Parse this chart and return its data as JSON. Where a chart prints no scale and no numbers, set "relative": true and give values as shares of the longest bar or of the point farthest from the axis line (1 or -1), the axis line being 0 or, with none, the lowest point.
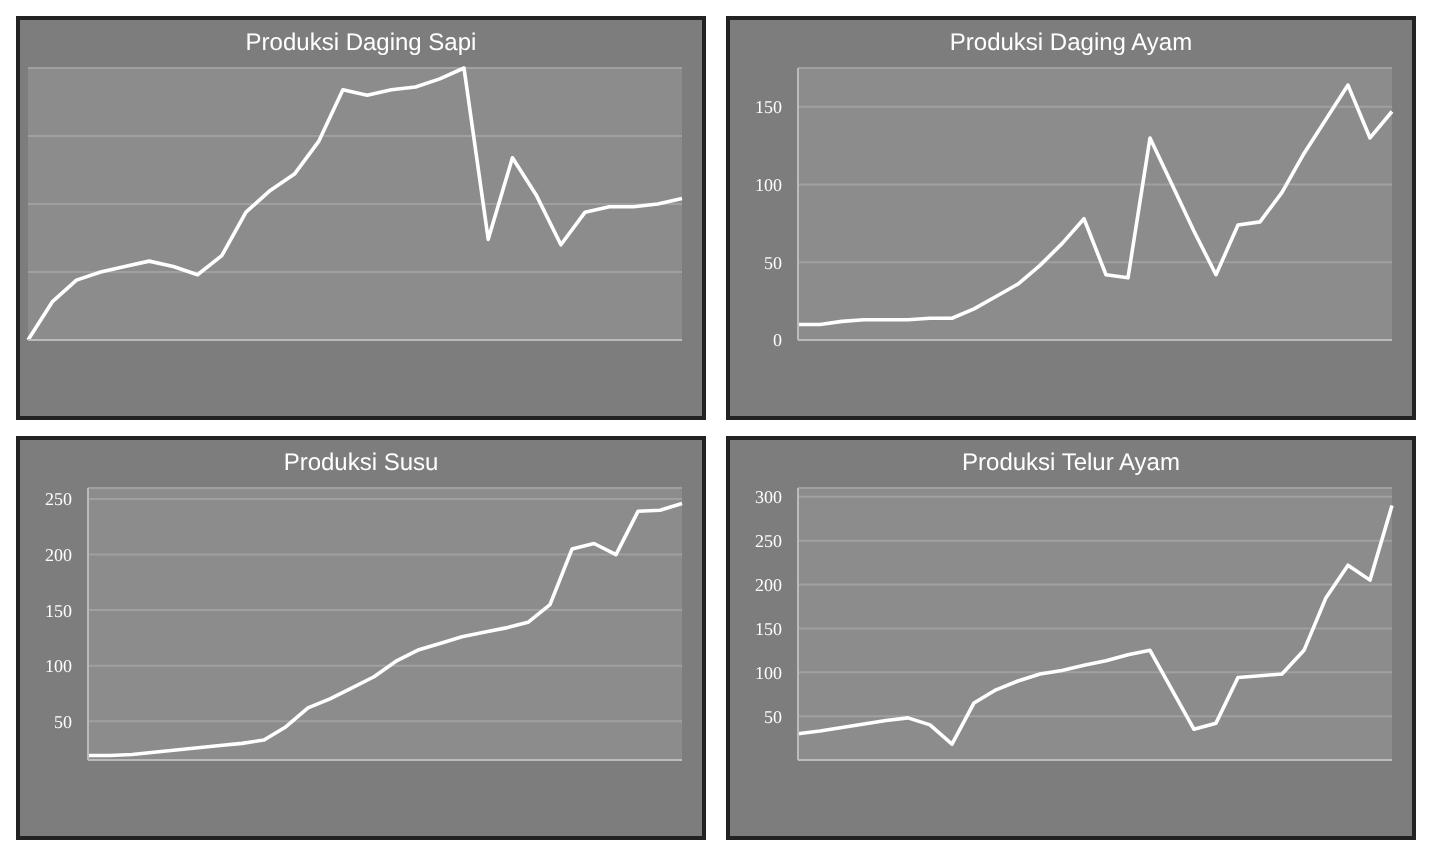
{
  "chart_data": [
    {
      "type": "line",
      "title": "Produksi Daging Sapi",
      "relative": true,
      "grid": "y",
      "categories": [
        null,
        null,
        null,
        null,
        null,
        null,
        null,
        null,
        null,
        null,
        null,
        null,
        null,
        null,
        null,
        null,
        null,
        null,
        null,
        null,
        null,
        null,
        null,
        null,
        null,
        null,
        null,
        null
      ],
      "series": [
        {
          "color": "#ffffff",
          "values": [
            0,
            0.14,
            0.22,
            0.25,
            0.27,
            0.29,
            0.27,
            0.24,
            0.31,
            0.47,
            0.55,
            0.61,
            0.73,
            0.92,
            0.9,
            0.92,
            0.93,
            0.96,
            1,
            0.37,
            0.67,
            0.53,
            0.35,
            0.47,
            0.49,
            0.49,
            0.5,
            0.52
          ]
        }
      ]
    },
    {
      "type": "line",
      "title": "Produksi Daging Ayam",
      "grid": "y",
      "ylim": [
        0,
        175
      ],
      "yticks": [
        0,
        50,
        100,
        150
      ],
      "categories": [
        null,
        null,
        null,
        null,
        null,
        null,
        null,
        null,
        null,
        null,
        null,
        null,
        null,
        null,
        null,
        null,
        null,
        null,
        null,
        null,
        null,
        null,
        null,
        null,
        null,
        null,
        null,
        null
      ],
      "series": [
        {
          "color": "#ffffff",
          "values": [
            10,
            10,
            12,
            13,
            13,
            13,
            14,
            14,
            20,
            28,
            36,
            48,
            62,
            78,
            42,
            40,
            130,
            100,
            70,
            42,
            74,
            76,
            95,
            120,
            142,
            164,
            130,
            147
          ]
        }
      ]
    },
    {
      "type": "line",
      "title": "Produksi Susu",
      "grid": "y",
      "ylim": [
        15,
        260
      ],
      "yticks": [
        50,
        100,
        150,
        200,
        250
      ],
      "categories": [
        null,
        null,
        null,
        null,
        null,
        null,
        null,
        null,
        null,
        null,
        null,
        null,
        null,
        null,
        null,
        null,
        null,
        null,
        null,
        null,
        null,
        null,
        null,
        null,
        null,
        null,
        null,
        null
      ],
      "series": [
        {
          "color": "#ffffff",
          "values": [
            19,
            19,
            20,
            22,
            24,
            26,
            28,
            30,
            33,
            45,
            62,
            70,
            80,
            90,
            104,
            114,
            120,
            126,
            130,
            134,
            139,
            155,
            205,
            210,
            200,
            239,
            240,
            246
          ]
        }
      ]
    },
    {
      "type": "line",
      "title": "Produksi Telur Ayam",
      "grid": "y",
      "ylim": [
        0,
        310
      ],
      "yticks": [
        50,
        100,
        150,
        200,
        250,
        300
      ],
      "categories": [
        null,
        null,
        null,
        null,
        null,
        null,
        null,
        null,
        null,
        null,
        null,
        null,
        null,
        null,
        null,
        null,
        null,
        null,
        null,
        null,
        null,
        null,
        null,
        null,
        null,
        null,
        null,
        null
      ],
      "series": [
        {
          "color": "#ffffff",
          "values": [
            30,
            33,
            37,
            41,
            45,
            48,
            40,
            18,
            65,
            80,
            90,
            98,
            102,
            108,
            113,
            120,
            125,
            80,
            35,
            42,
            94,
            96,
            98,
            125,
            185,
            222,
            205,
            290
          ]
        }
      ]
    }
  ]
}
